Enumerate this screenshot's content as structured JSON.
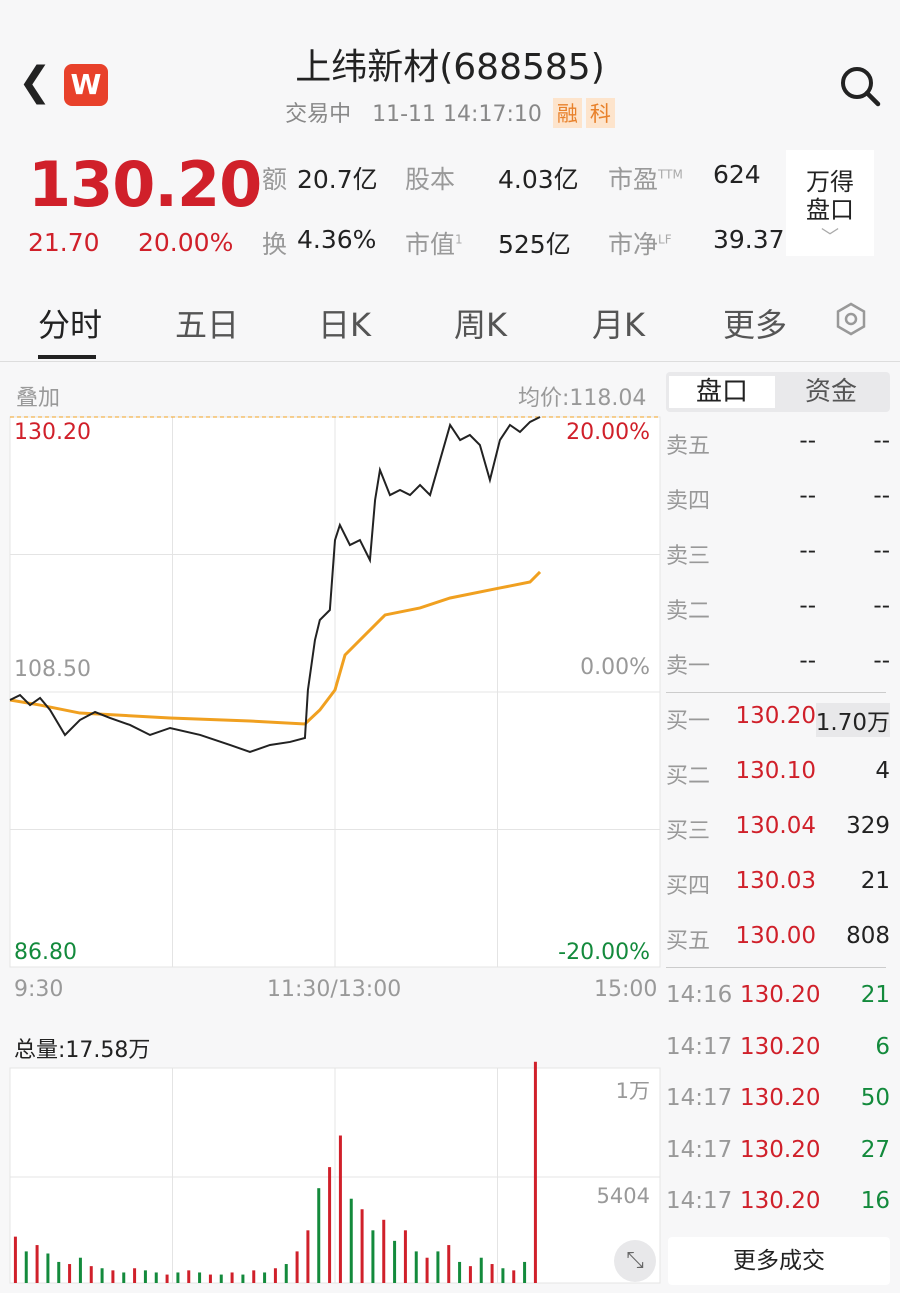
{
  "header": {
    "title": "上纬新材(688585)",
    "status": "交易中",
    "datetime": "11-11 14:17:10",
    "tags": [
      "融",
      "科"
    ],
    "back_icon": "chevron-left-icon",
    "logo": "W",
    "search_icon": "search-icon"
  },
  "quote": {
    "price": "130.20",
    "change": "21.70",
    "change_pct": "20.00%",
    "stats": [
      {
        "label": "额",
        "value": "20.7亿"
      },
      {
        "label": "股本",
        "value": "4.03亿"
      },
      {
        "label": "市盈",
        "sup": "TTM",
        "value": "624"
      },
      {
        "label": "换",
        "value": "4.36%"
      },
      {
        "label": "市值",
        "sup": "1",
        "value": "525亿"
      },
      {
        "label": "市净",
        "sup": "LF",
        "value": "39.37"
      }
    ],
    "wind_button": [
      "万得",
      "盘口"
    ]
  },
  "tabs": [
    "分时",
    "五日",
    "日K",
    "周K",
    "月K",
    "更多"
  ],
  "chart": {
    "overlay_label": "叠加",
    "avg_label": "均价:118.04",
    "y_top": "130.20",
    "y_mid": "108.50",
    "y_bot": "86.80",
    "pct_top": "20.00%",
    "pct_mid": "0.00%",
    "pct_bot": "-20.00%",
    "x_labels": [
      "9:30",
      "11:30/13:00",
      "15:00"
    ],
    "volume_label": "总量:17.58万",
    "vol_top": "1万",
    "vol_mid": "5404",
    "colors": {
      "price": "#222222",
      "avg": "#f0a020",
      "up": "#d0202a",
      "down": "#138a3c"
    }
  },
  "chart_data": {
    "type": "line",
    "ylim": [
      86.8,
      130.2
    ],
    "xlim_minutes": [
      0,
      240
    ],
    "series": [
      {
        "x": [
          0,
          3.7,
          7.4,
          11.1,
          14.8,
          20.3,
          25.8,
          31.4,
          36.9,
          44.3,
          51.7,
          59.1,
          70.2,
          81.2,
          88.6,
          96,
          103.4,
          108.9,
          110,
          112.6,
          114.4,
          118.1,
          120,
          121.8,
          125.5,
          129.2,
          132.9,
          134.8,
          136.6,
          140.3,
          144,
          147.7,
          151.4,
          155.1,
          158.8,
          162.5,
          166.2,
          169.8,
          173.5,
          177.2,
          180.9,
          184.6,
          188.3,
          192,
          195.7
        ],
        "y": [
          107.87,
          108.26,
          107.47,
          108.03,
          107.08,
          105.11,
          106.29,
          106.92,
          106.45,
          105.9,
          105.11,
          105.66,
          105.11,
          104.32,
          103.77,
          104.32,
          104.56,
          104.87,
          108.66,
          112.6,
          114.18,
          114.97,
          120.49,
          121.68,
          120.1,
          120.49,
          118.91,
          123.65,
          126.02,
          124.04,
          124.44,
          124.04,
          124.83,
          124.04,
          126.81,
          129.57,
          128.38,
          128.78,
          127.99,
          125.23,
          128.38,
          129.57,
          129.02,
          129.81,
          130.2
        ]
      },
      {
        "x": [
          0,
          11.1,
          25.8,
          59.1,
          88.6,
          108.9,
          114.4,
          120,
          123.7,
          132.9,
          138.5,
          151.4,
          162.5,
          180.9,
          192,
          195.7
        ],
        "y": [
          107.87,
          107.47,
          106.84,
          106.45,
          106.21,
          105.98,
          107.08,
          108.66,
          111.42,
          113.39,
          114.58,
          115.13,
          115.92,
          116.71,
          117.18,
          117.97
        ]
      }
    ],
    "volume": {
      "interval_minutes": 4,
      "values": [
        2200,
        1500,
        1800,
        1400,
        1000,
        900,
        1200,
        800,
        700,
        600,
        500,
        700,
        600,
        500,
        400,
        500,
        600,
        500,
        400,
        400,
        500,
        400,
        600,
        500,
        700,
        900,
        1500,
        2500,
        4500,
        5500,
        7000,
        4000,
        3500,
        2500,
        3000,
        2000,
        2500,
        1500,
        1200,
        1500,
        1800,
        1000,
        800,
        1200,
        900,
        700,
        600,
        1000,
        10500
      ],
      "direction": [
        "u",
        "d",
        "u",
        "d",
        "d",
        "u",
        "d",
        "u",
        "d",
        "u",
        "d",
        "u",
        "d",
        "d",
        "u",
        "d",
        "u",
        "d",
        "u",
        "d",
        "u",
        "d",
        "u",
        "d",
        "u",
        "d",
        "u",
        "u",
        "d",
        "u",
        "u",
        "d",
        "u",
        "d",
        "u",
        "d",
        "u",
        "d",
        "u",
        "d",
        "u",
        "d",
        "u",
        "d",
        "u",
        "d",
        "u",
        "d",
        "u"
      ]
    }
  },
  "orderbook": {
    "tabs": [
      "盘口",
      "资金"
    ],
    "asks": [
      {
        "label": "卖五",
        "price": "--",
        "vol": "--"
      },
      {
        "label": "卖四",
        "price": "--",
        "vol": "--"
      },
      {
        "label": "卖三",
        "price": "--",
        "vol": "--"
      },
      {
        "label": "卖二",
        "price": "--",
        "vol": "--"
      },
      {
        "label": "卖一",
        "price": "--",
        "vol": "--"
      }
    ],
    "bids": [
      {
        "label": "买一",
        "price": "130.20",
        "vol": "1.70万"
      },
      {
        "label": "买二",
        "price": "130.10",
        "vol": "4"
      },
      {
        "label": "买三",
        "price": "130.04",
        "vol": "329"
      },
      {
        "label": "买四",
        "price": "130.03",
        "vol": "21"
      },
      {
        "label": "买五",
        "price": "130.00",
        "vol": "808"
      }
    ],
    "trades": [
      {
        "time": "14:16",
        "price": "130.20",
        "vol": "21"
      },
      {
        "time": "14:17",
        "price": "130.20",
        "vol": "6"
      },
      {
        "time": "14:17",
        "price": "130.20",
        "vol": "50"
      },
      {
        "time": "14:17",
        "price": "130.20",
        "vol": "27"
      },
      {
        "time": "14:17",
        "price": "130.20",
        "vol": "16"
      }
    ],
    "more_trades": "更多成交"
  }
}
